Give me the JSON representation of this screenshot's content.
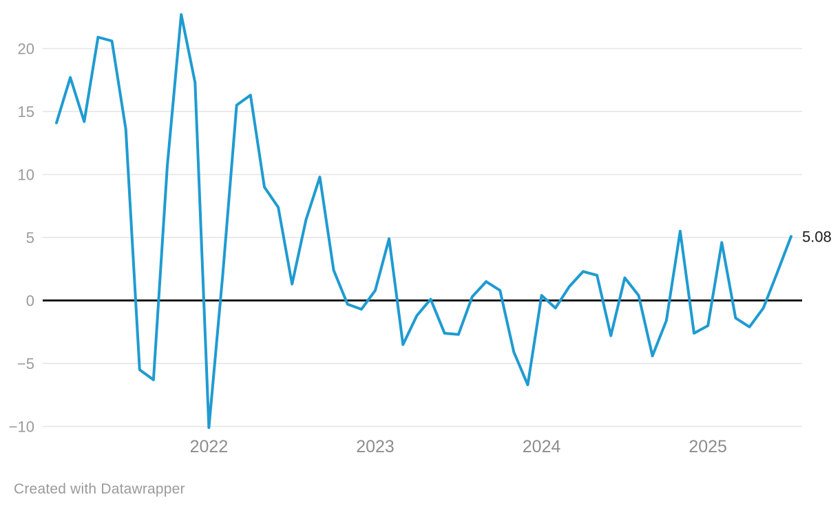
{
  "chart": {
    "attribution": "Created with Datawrapper",
    "colors": {
      "line": "#1f9bd1",
      "zero_line": "#1a1a1a",
      "grid": "#e4e4e4",
      "y_label": "#9a9a9a",
      "x_label": "#8d8d8d",
      "end_label": "#1a1a1a",
      "background": "#ffffff"
    }
  },
  "chart_data": {
    "type": "line",
    "title": "",
    "xlabel": "",
    "ylabel": "",
    "x_unit": "month",
    "points_per_year": 12,
    "first_point_months_before_2022": 11,
    "grid": true,
    "ylim": [
      -10.5,
      23.5
    ],
    "y_ticks": [
      20,
      15,
      10,
      5,
      0,
      -5,
      -10
    ],
    "year_ticks": [
      {
        "label": "2022",
        "month_index": 11
      },
      {
        "label": "2023",
        "month_index": 23
      },
      {
        "label": "2024",
        "month_index": 35
      },
      {
        "label": "2025",
        "month_index": 47
      }
    ],
    "series": [
      {
        "name": "value",
        "values": [
          14.1,
          17.7,
          14.2,
          20.9,
          20.6,
          13.6,
          -5.5,
          -6.3,
          10.7,
          22.7,
          17.3,
          -10.1,
          2.1,
          15.5,
          16.3,
          9.0,
          7.4,
          1.3,
          6.4,
          9.8,
          2.4,
          -0.3,
          -0.7,
          0.8,
          4.9,
          -3.5,
          -1.2,
          0.1,
          -2.6,
          -2.7,
          0.3,
          1.5,
          0.8,
          -4.1,
          -6.7,
          0.4,
          -0.6,
          1.1,
          2.3,
          2.0,
          -2.8,
          1.8,
          0.4,
          -4.4,
          -1.6,
          5.5,
          -2.6,
          -2.0,
          4.6,
          -1.4,
          -2.1,
          -0.6,
          2.2,
          5.08
        ]
      }
    ],
    "end_value_label": "5.08"
  }
}
